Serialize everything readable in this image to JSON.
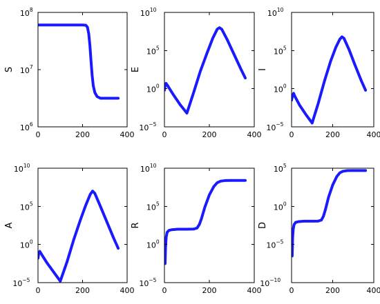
{
  "chart_data": [
    {
      "type": "line",
      "ylabel": "S",
      "yscale": "log",
      "ylim_exponent": [
        6,
        8
      ],
      "yticks": [
        {
          "base": "10",
          "exp": "6"
        },
        {
          "base": "10",
          "exp": "7"
        },
        {
          "base": "10",
          "exp": "8"
        }
      ],
      "xlim": [
        0,
        400
      ],
      "xticks": [
        "0",
        "200",
        "400"
      ],
      "series": [
        {
          "color": "#1a1aff",
          "x": [
            0,
            50,
            100,
            150,
            200,
            215,
            222,
            228,
            233,
            238,
            243,
            248,
            255,
            265,
            280,
            300,
            320,
            340,
            360
          ],
          "log10_y": [
            7.78,
            7.78,
            7.78,
            7.78,
            7.78,
            7.775,
            7.74,
            7.62,
            7.42,
            7.15,
            6.9,
            6.72,
            6.6,
            6.53,
            6.5,
            6.5,
            6.5,
            6.5,
            6.5
          ]
        }
      ]
    },
    {
      "type": "line",
      "ylabel": "E",
      "yscale": "log",
      "ylim_exponent": [
        -5,
        10
      ],
      "yticks": [
        {
          "base": "10",
          "exp": "−5"
        },
        {
          "base": "10",
          "exp": "0"
        },
        {
          "base": "10",
          "exp": "5"
        },
        {
          "base": "10",
          "exp": "10"
        }
      ],
      "xlim": [
        0,
        400
      ],
      "xticks": [
        "0",
        "200",
        "400"
      ],
      "series": [
        {
          "color": "#1a1aff",
          "x": [
            0,
            3,
            7,
            12,
            40,
            70,
            100,
            130,
            160,
            190,
            215,
            235,
            245,
            255,
            280,
            310,
            340,
            360
          ],
          "log10_y": [
            -0.2,
            0.4,
            0.7,
            0.5,
            -0.8,
            -2.1,
            -3.2,
            -0.5,
            2.3,
            4.7,
            6.6,
            7.8,
            8.0,
            7.8,
            6.4,
            4.5,
            2.6,
            1.4
          ]
        }
      ]
    },
    {
      "type": "line",
      "ylabel": "I",
      "yscale": "log",
      "ylim_exponent": [
        -5,
        10
      ],
      "yticks": [
        {
          "base": "10",
          "exp": "−5"
        },
        {
          "base": "10",
          "exp": "0"
        },
        {
          "base": "10",
          "exp": "5"
        },
        {
          "base": "10",
          "exp": "10"
        }
      ],
      "xlim": [
        0,
        400
      ],
      "xticks": [
        "0",
        "200",
        "400"
      ],
      "series": [
        {
          "color": "#1a1aff",
          "x": [
            0,
            4,
            10,
            16,
            40,
            70,
            100,
            130,
            160,
            190,
            215,
            235,
            245,
            255,
            280,
            310,
            340,
            360
          ],
          "log10_y": [
            -1.5,
            -1.0,
            -0.6,
            -1.0,
            -2.2,
            -3.4,
            -4.5,
            -1.9,
            1.0,
            3.6,
            5.4,
            6.5,
            6.8,
            6.6,
            5.1,
            3.0,
            1.0,
            -0.2
          ]
        }
      ]
    },
    {
      "type": "line",
      "ylabel": "A",
      "yscale": "log",
      "ylim_exponent": [
        -5,
        10
      ],
      "yticks": [
        {
          "base": "10",
          "exp": "−5"
        },
        {
          "base": "10",
          "exp": "0"
        },
        {
          "base": "10",
          "exp": "5"
        },
        {
          "base": "10",
          "exp": "10"
        }
      ],
      "xlim": [
        0,
        400
      ],
      "xticks": [
        "0",
        "200",
        "400"
      ],
      "series": [
        {
          "color": "#1a1aff",
          "x": [
            0,
            3,
            8,
            14,
            40,
            70,
            100,
            130,
            160,
            190,
            215,
            235,
            245,
            255,
            280,
            310,
            340,
            360
          ],
          "log10_y": [
            -1.8,
            -1.2,
            -0.9,
            -1.2,
            -2.4,
            -3.6,
            -4.8,
            -2.3,
            0.6,
            3.2,
            5.2,
            6.6,
            7.0,
            6.7,
            5.0,
            2.9,
            0.8,
            -0.5
          ]
        }
      ]
    },
    {
      "type": "line",
      "ylabel": "R",
      "yscale": "log",
      "ylim_exponent": [
        -5,
        10
      ],
      "yticks": [
        {
          "base": "10",
          "exp": "−5"
        },
        {
          "base": "10",
          "exp": "0"
        },
        {
          "base": "10",
          "exp": "5"
        },
        {
          "base": "10",
          "exp": "10"
        }
      ],
      "xlim": [
        0,
        400
      ],
      "xticks": [
        "0",
        "200",
        "400"
      ],
      "series": [
        {
          "color": "#1a1aff",
          "x": [
            3,
            5,
            8,
            12,
            20,
            35,
            60,
            100,
            130,
            145,
            155,
            165,
            180,
            200,
            220,
            235,
            250,
            270,
            300,
            330,
            360
          ],
          "log10_y": [
            -2.5,
            -0.3,
            1.0,
            1.6,
            1.85,
            1.95,
            2.0,
            2.0,
            2.02,
            2.15,
            2.6,
            3.4,
            4.9,
            6.5,
            7.6,
            8.1,
            8.3,
            8.38,
            8.4,
            8.4,
            8.4
          ]
        }
      ]
    },
    {
      "type": "line",
      "ylabel": "D",
      "yscale": "log",
      "ylim_exponent": [
        -10,
        5
      ],
      "yticks": [
        {
          "base": "10",
          "exp": "−10"
        },
        {
          "base": "10",
          "exp": "−5"
        },
        {
          "base": "10",
          "exp": "0"
        },
        {
          "base": "10",
          "exp": "5"
        }
      ],
      "xlim": [
        0,
        400
      ],
      "xticks": [
        "0",
        "200",
        "400"
      ],
      "series": [
        {
          "color": "#1a1aff",
          "x": [
            3,
            5,
            8,
            12,
            20,
            35,
            60,
            100,
            130,
            145,
            155,
            165,
            180,
            200,
            220,
            235,
            250,
            270,
            300,
            330,
            360
          ],
          "log10_y": [
            -6.5,
            -4.2,
            -3.0,
            -2.4,
            -2.1,
            -2.0,
            -1.95,
            -1.95,
            -1.93,
            -1.8,
            -1.3,
            -0.4,
            1.2,
            2.8,
            3.9,
            4.4,
            4.6,
            4.68,
            4.7,
            4.7,
            4.7
          ]
        }
      ]
    }
  ]
}
